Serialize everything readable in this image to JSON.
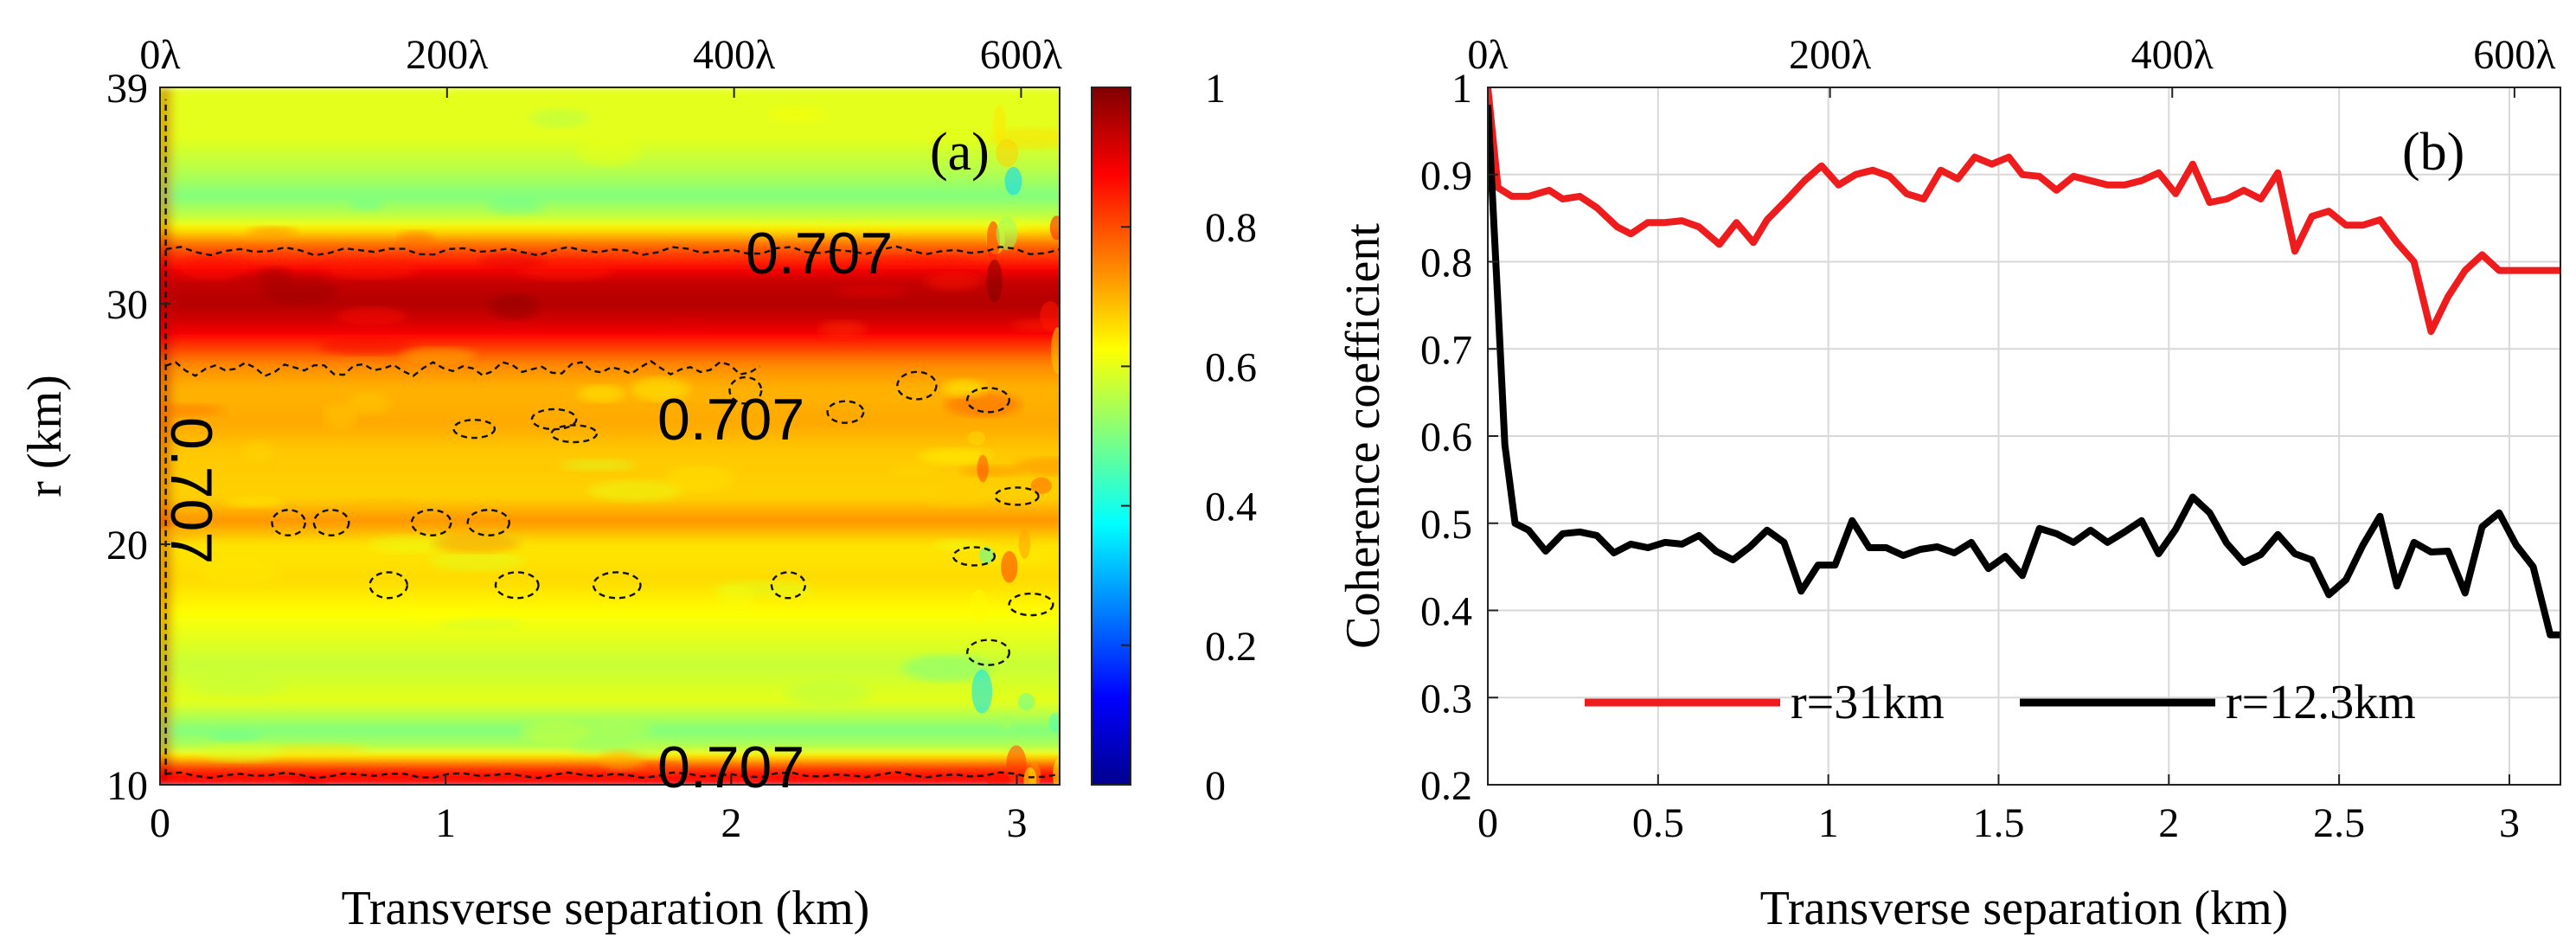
{
  "panel_a": {
    "tag": "(a)",
    "xlabel": "Transverse separation (km)",
    "ylabel": "r (km)",
    "xticks": [
      "0",
      "1",
      "2",
      "3"
    ],
    "yticks": [
      "10",
      "20",
      "30",
      "39"
    ],
    "top_ticks": [
      "0λ",
      "200λ",
      "400λ",
      "600λ"
    ],
    "contour_labels": [
      "0.707",
      "0.707",
      "0.707",
      "0.707"
    ],
    "colorbar_ticks": [
      "0",
      "0.2",
      "0.4",
      "0.6",
      "0.8",
      "1"
    ]
  },
  "panel_b": {
    "tag": "(b)",
    "xlabel": "Transverse separation (km)",
    "ylabel": "Coherence coefficient",
    "xticks": [
      "0",
      "0.5",
      "1",
      "1.5",
      "2",
      "2.5",
      "3"
    ],
    "yticks": [
      "0.2",
      "0.3",
      "0.4",
      "0.5",
      "0.6",
      "0.7",
      "0.8",
      "0.9",
      "1"
    ],
    "top_ticks": [
      "0λ",
      "200λ",
      "400λ",
      "600λ"
    ],
    "legend": [
      "r=31km",
      "r=12.3km"
    ]
  },
  "chart_data": [
    {
      "type": "heatmap",
      "title": "",
      "xlabel": "Transverse separation (km)",
      "ylabel": "r (km)",
      "xlim": [
        0,
        3.15
      ],
      "ylim": [
        10,
        39
      ],
      "secondary_x_ticks": [
        "0λ",
        "200λ",
        "400λ",
        "600λ"
      ],
      "colorbar": {
        "range": [
          0,
          1
        ],
        "ticks": [
          0,
          0.2,
          0.4,
          0.6,
          0.8,
          1
        ]
      },
      "colormap": "jet",
      "contour_level": 0.707,
      "r_profile": {
        "r": [
          10,
          10.7,
          11.5,
          12.3,
          13.5,
          15,
          17,
          18.5,
          20,
          21,
          22,
          24,
          25,
          26.5,
          27.5,
          29,
          30,
          31,
          32.5,
          33.5,
          34.5,
          35.5,
          37,
          39
        ],
        "coherence": [
          0.88,
          0.84,
          0.56,
          0.5,
          0.6,
          0.57,
          0.62,
          0.66,
          0.65,
          0.73,
          0.67,
          0.68,
          0.71,
          0.7,
          0.74,
          0.9,
          0.95,
          0.93,
          0.77,
          0.58,
          0.5,
          0.55,
          0.6,
          0.6
        ]
      }
    },
    {
      "type": "line",
      "title": "",
      "xlabel": "Transverse separation (km)",
      "ylabel": "Coherence coefficient",
      "xlim": [
        0,
        3.15
      ],
      "ylim": [
        0.2,
        1
      ],
      "grid": true,
      "legend_position": "bottom",
      "series": [
        {
          "name": "r=31km",
          "color": "#ee1c1c",
          "x": [
            0,
            0.03,
            0.07,
            0.12,
            0.18,
            0.22,
            0.27,
            0.32,
            0.38,
            0.42,
            0.47,
            0.52,
            0.57,
            0.62,
            0.68,
            0.73,
            0.78,
            0.82,
            0.88,
            0.93,
            0.98,
            1.03,
            1.08,
            1.13,
            1.18,
            1.23,
            1.28,
            1.33,
            1.38,
            1.43,
            1.48,
            1.53,
            1.57,
            1.62,
            1.67,
            1.72,
            1.77,
            1.82,
            1.87,
            1.92,
            1.97,
            2.02,
            2.07,
            2.12,
            2.17,
            2.22,
            2.27,
            2.32,
            2.37,
            2.42,
            2.47,
            2.52,
            2.57,
            2.62,
            2.67,
            2.72,
            2.77,
            2.82,
            2.87,
            2.92,
            2.97,
            3.01,
            3.05,
            3.1,
            3.15
          ],
          "values": [
            1.0,
            0.885,
            0.875,
            0.875,
            0.882,
            0.872,
            0.875,
            0.862,
            0.84,
            0.832,
            0.845,
            0.845,
            0.847,
            0.84,
            0.82,
            0.845,
            0.822,
            0.848,
            0.872,
            0.893,
            0.91,
            0.888,
            0.9,
            0.905,
            0.898,
            0.878,
            0.872,
            0.905,
            0.895,
            0.92,
            0.912,
            0.92,
            0.9,
            0.898,
            0.882,
            0.898,
            0.893,
            0.888,
            0.888,
            0.893,
            0.902,
            0.878,
            0.912,
            0.868,
            0.872,
            0.882,
            0.872,
            0.902,
            0.812,
            0.852,
            0.858,
            0.842,
            0.842,
            0.848,
            0.822,
            0.8,
            0.72,
            0.76,
            0.79,
            0.808,
            0.79,
            0.79,
            0.79,
            0.79,
            0.79
          ]
        },
        {
          "name": "r=12.3km",
          "color": "#000000",
          "x": [
            0,
            0.03,
            0.05,
            0.08,
            0.12,
            0.17,
            0.22,
            0.27,
            0.32,
            0.37,
            0.42,
            0.47,
            0.52,
            0.57,
            0.62,
            0.67,
            0.72,
            0.77,
            0.82,
            0.87,
            0.92,
            0.97,
            1.02,
            1.07,
            1.12,
            1.17,
            1.22,
            1.27,
            1.32,
            1.37,
            1.42,
            1.47,
            1.52,
            1.57,
            1.62,
            1.67,
            1.72,
            1.77,
            1.82,
            1.87,
            1.92,
            1.97,
            2.02,
            2.07,
            2.12,
            2.17,
            2.22,
            2.27,
            2.32,
            2.37,
            2.42,
            2.47,
            2.52,
            2.57,
            2.62,
            2.67,
            2.72,
            2.77,
            2.82,
            2.87,
            2.92,
            2.97,
            3.02,
            3.07,
            3.12,
            3.15
          ],
          "values": [
            0.98,
            0.75,
            0.59,
            0.5,
            0.492,
            0.468,
            0.488,
            0.49,
            0.486,
            0.466,
            0.476,
            0.472,
            0.478,
            0.476,
            0.486,
            0.468,
            0.458,
            0.473,
            0.492,
            0.478,
            0.422,
            0.452,
            0.452,
            0.503,
            0.472,
            0.472,
            0.463,
            0.47,
            0.473,
            0.466,
            0.478,
            0.448,
            0.462,
            0.44,
            0.494,
            0.488,
            0.478,
            0.492,
            0.478,
            0.49,
            0.503,
            0.465,
            0.493,
            0.53,
            0.512,
            0.477,
            0.455,
            0.464,
            0.487,
            0.465,
            0.458,
            0.418,
            0.435,
            0.475,
            0.508,
            0.428,
            0.478,
            0.467,
            0.468,
            0.42,
            0.496,
            0.512,
            0.475,
            0.45,
            0.372,
            0.372
          ]
        }
      ]
    }
  ]
}
